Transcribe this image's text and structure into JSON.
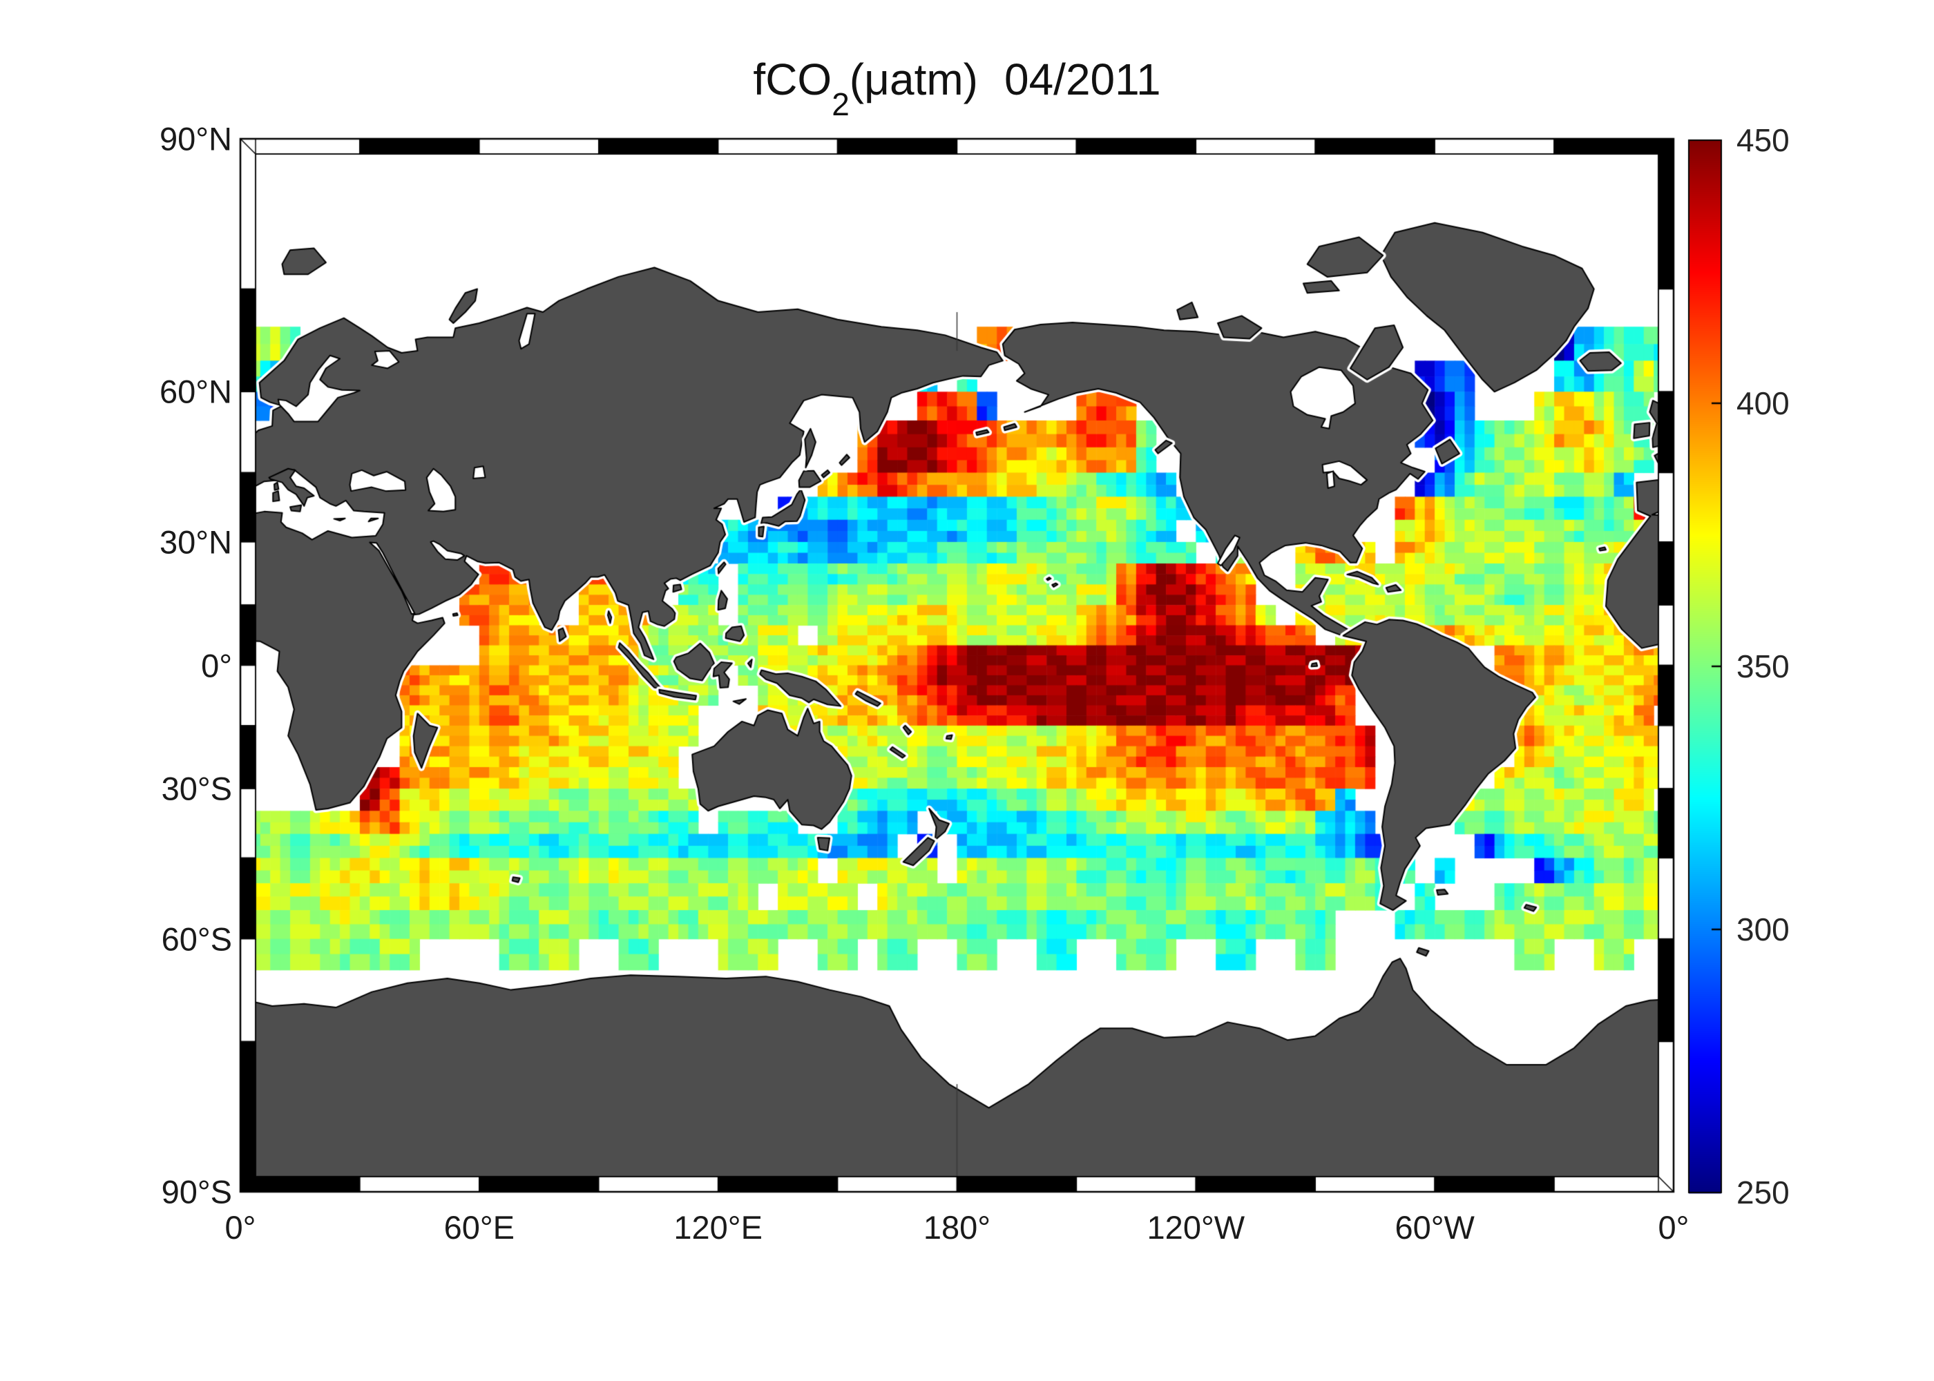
{
  "title": {
    "prefix": "fCO",
    "sub": "2",
    "suffix": "(μatm)",
    "date": "04/2011"
  },
  "axes": {
    "lat_labels": [
      {
        "text": "90°N",
        "lat": 90
      },
      {
        "text": "60°N",
        "lat": 60
      },
      {
        "text": "30°N",
        "lat": 30
      },
      {
        "text": "0°",
        "lat": 0
      },
      {
        "text": "30°S",
        "lat": -30
      },
      {
        "text": "60°S",
        "lat": -60
      },
      {
        "text": "90°S",
        "lat": -90
      }
    ],
    "lon_labels": [
      {
        "text": "0°",
        "lon": 0
      },
      {
        "text": "60°E",
        "lon": 60
      },
      {
        "text": "120°E",
        "lon": 120
      },
      {
        "text": "180°",
        "lon": 180
      },
      {
        "text": "120°W",
        "lon": 240
      },
      {
        "text": "60°W",
        "lon": 300
      },
      {
        "text": "0°",
        "lon": 360
      }
    ]
  },
  "colorbar": {
    "min": 250,
    "max": 450,
    "ticks": [
      450,
      400,
      350,
      300,
      250
    ],
    "inner_ticks": [
      400,
      350,
      300
    ]
  },
  "map": {
    "land_color": "#4e4e4e",
    "coast_color": "#000000",
    "frame_lon_step": 30,
    "frame_lat_step": 15
  },
  "chart_data": {
    "type": "heatmap",
    "title": "fCO2(μatm) 04/2011",
    "units": "μatm",
    "projection": "miller",
    "lon_range": [
      0,
      360
    ],
    "lat_range": [
      -90,
      90
    ],
    "colormap": "jet",
    "color_scale": [
      250,
      450
    ],
    "grid": {
      "lon_start": 0,
      "lon_step": 5,
      "lat_start": 67.5,
      "lat_step": -5,
      "value_key": {
        "0": 258,
        "1": 272,
        "2": 288,
        "3": 300,
        "4": 312,
        "5": 323,
        "6": 334,
        "7": 345,
        "8": 356,
        "9": 366,
        "A": 377,
        "B": 388,
        "C": 400,
        "D": 413,
        "E": 428,
        "F": 446,
        ".": null
      },
      "rows": [
        "A97..................................BC...........................045666",
        "743...............................5.6......................122....546696",
        "22................................DED2....CDC..............013...9BB977",
        "...............................CEFFEDDCCBCDDC7.............2146789BBA877",
        "...............................DFFFEDCBBABCCB6..............2578899A987.",
        ".............................ACDEDCCBBAA9987654............13688998884..",
        "...........................245544445555667899864..........DB9877776678ED",
        "B.......................54443334444455566788765 56........ABA9888887789B.",
        "............DEE.........444544445556667888877666 78..BCBA.BA9999988889A..",
        "............DDD..CCD..65.6666677788889998888CEFEDCB..999A99998888889ABAD",
        "...........CCCC..BBCB.77.7777788889999988899DFFFEDC..999999888877889ABCD",
        "...........CCBB..BBBB888.88888999AAA999999ABCEFFEDC9.9999A998888899ABCCC",
        "............CBBBBBBB98887899 9AAAAAA9999AABCDEFFFFEDDC.99ACCCBA9999AABCCC",
        "............BBBBBBBB888888999AAABCDEFFFFFFFFFFFFFFFFFFFFFF.....CCBBAAABBCCC",
        "........CBBBCCBBBBBB9888.8999AABCDEFFFFFFFFFFFFFFFFFFFFFFF.....CCBAAAAABBCC",
        "........CBBBCCCBBBBA9988..99AABBBCDEFFFFFFFFFFFFFFFFFFED.....CBBAA99AABCC",
        "........BBBBCCBBBBAA999...AAAABBABCDEEEEFFFFFFFFFFEEEEED....BBBAA99AABC",
        "........BBBBBBBBAAAAA99...99.99A999999999AABCCDDCCDDCCCDE.......CBA99ABB",
        "........BBBBBBAAAAAAAA........9999889999AABCCDDCCCCCDCCDE.......BA9999AA",
        "......FECBBBBBAAA99999........9988888999AABBCCCCBBCCCCDDD......A998999AA",
        "......FDAA9999998888888.......76555566778899AABBBAABBCB4.....98888999AA",
        "98889ACDB98887777788766.6666..6544.4455566778889988998543....77788899998",
        "887778998776666556666655555554444 2.4445556666655556665422....25667788888",
        "99889AA99AAA99888998888888889 99999 98888877766777766777876 4....246778889999",
        "9999AA999AA998888888888889 9999 98888888887777788887778887 6...6788899998888",
        "8888899888888778887788788888888888777777666777777667776...67777888888888",
        "888887788....7788..77...888..88.77..77..66..777..66..77.........88..88...",
        "........................................................................"
      ]
    }
  }
}
